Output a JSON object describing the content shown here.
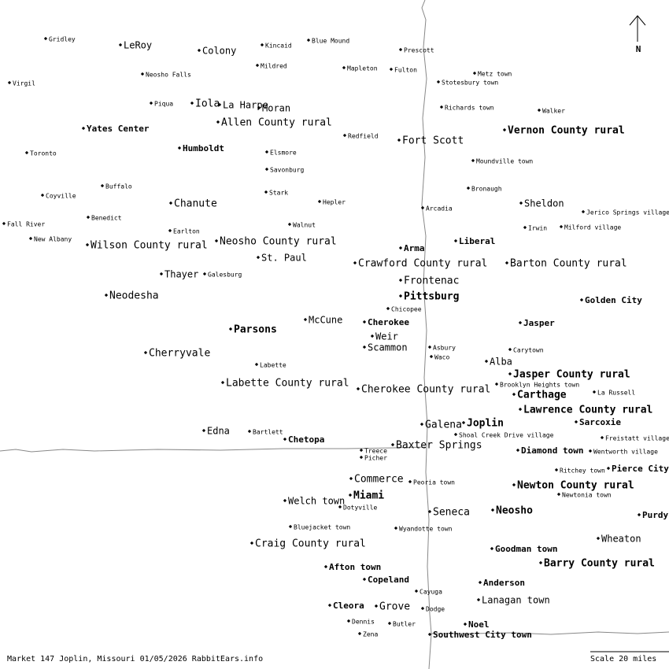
{
  "compass": "N",
  "places": [
    {
      "label": "Gridley"
    },
    {
      "label": "LeRoy"
    },
    {
      "label": "Colony"
    },
    {
      "label": "Kincaid"
    },
    {
      "label": "Blue Mound"
    },
    {
      "label": "Prescott"
    },
    {
      "label": "Mildred"
    },
    {
      "label": "Neosho Falls"
    },
    {
      "label": "Mapleton"
    },
    {
      "label": "Fulton"
    },
    {
      "label": "Metz town"
    },
    {
      "label": "Virgil"
    },
    {
      "label": "Stotesbury town"
    },
    {
      "label": "Piqua"
    },
    {
      "label": "Iola"
    },
    {
      "label": "La Harpe"
    },
    {
      "label": "Moran"
    },
    {
      "label": "Richards town"
    },
    {
      "label": "Walker"
    },
    {
      "label": "Allen County rural"
    },
    {
      "label": "Yates Center"
    },
    {
      "label": "Vernon County rural"
    },
    {
      "label": "Redfield"
    },
    {
      "label": "Fort Scott"
    },
    {
      "label": "Humboldt"
    },
    {
      "label": "Toronto"
    },
    {
      "label": "Elsmore"
    },
    {
      "label": "Moundville town"
    },
    {
      "label": "Savonburg"
    },
    {
      "label": "Buffalo"
    },
    {
      "label": "Bronaugh"
    },
    {
      "label": "Coyville"
    },
    {
      "label": "Stark"
    },
    {
      "label": "Hepler"
    },
    {
      "label": "Chanute"
    },
    {
      "label": "Sheldon"
    },
    {
      "label": "Arcadia"
    },
    {
      "label": "Jerico Springs village"
    },
    {
      "label": "Benedict"
    },
    {
      "label": "Fall River"
    },
    {
      "label": "Walnut"
    },
    {
      "label": "Irwin"
    },
    {
      "label": "Milford village"
    },
    {
      "label": "Earlton"
    },
    {
      "label": "New Albany"
    },
    {
      "label": "Liberal"
    },
    {
      "label": "Neosho County rural"
    },
    {
      "label": "Wilson County rural"
    },
    {
      "label": "Arma"
    },
    {
      "label": "St. Paul"
    },
    {
      "label": "Crawford County rural"
    },
    {
      "label": "Barton County rural"
    },
    {
      "label": "Thayer"
    },
    {
      "label": "Galesburg"
    },
    {
      "label": "Frontenac"
    },
    {
      "label": "Neodesha"
    },
    {
      "label": "Pittsburg"
    },
    {
      "label": "Golden City"
    },
    {
      "label": "Chicopee"
    },
    {
      "label": "McCune"
    },
    {
      "label": "Cherokee"
    },
    {
      "label": "Jasper"
    },
    {
      "label": "Parsons"
    },
    {
      "label": "Weir"
    },
    {
      "label": "Asbury"
    },
    {
      "label": "Scammon"
    },
    {
      "label": "Carytown"
    },
    {
      "label": "Cherryvale"
    },
    {
      "label": "Waco"
    },
    {
      "label": "Alba"
    },
    {
      "label": "Labette"
    },
    {
      "label": "Jasper County rural"
    },
    {
      "label": "Labette County rural"
    },
    {
      "label": "Brooklyn Heights town"
    },
    {
      "label": "Cherokee County rural"
    },
    {
      "label": "La Russell"
    },
    {
      "label": "Carthage"
    },
    {
      "label": "Lawrence County rural"
    },
    {
      "label": "Sarcoxie"
    },
    {
      "label": "Galena"
    },
    {
      "label": "Joplin"
    },
    {
      "label": "Edna"
    },
    {
      "label": "Bartlett"
    },
    {
      "label": "Shoal Creek Drive village"
    },
    {
      "label": "Freistatt village"
    },
    {
      "label": "Chetopa"
    },
    {
      "label": "Baxter Springs"
    },
    {
      "label": "Treece"
    },
    {
      "label": "Diamond town"
    },
    {
      "label": "Wentworth village"
    },
    {
      "label": "Picher"
    },
    {
      "label": "Pierce City"
    },
    {
      "label": "Ritchey town"
    },
    {
      "label": "Commerce"
    },
    {
      "label": "Peoria town"
    },
    {
      "label": "Newton County rural"
    },
    {
      "label": "Newtonia town"
    },
    {
      "label": "Miami"
    },
    {
      "label": "Welch town"
    },
    {
      "label": "Dotyville"
    },
    {
      "label": "Neosho"
    },
    {
      "label": "Seneca"
    },
    {
      "label": "Purdy"
    },
    {
      "label": "Bluejacket town"
    },
    {
      "label": "Wyandotte town"
    },
    {
      "label": "Wheaton"
    },
    {
      "label": "Craig County rural"
    },
    {
      "label": "Goodman town"
    },
    {
      "label": "Barry County rural"
    },
    {
      "label": "Afton town"
    },
    {
      "label": "Copeland"
    },
    {
      "label": "Anderson"
    },
    {
      "label": "Cayuga"
    },
    {
      "label": "Lanagan town"
    },
    {
      "label": "Cleora"
    },
    {
      "label": "Grove"
    },
    {
      "label": "Dodge"
    },
    {
      "label": "Dennis"
    },
    {
      "label": "Butler"
    },
    {
      "label": "Noel"
    },
    {
      "label": "Zena"
    },
    {
      "label": "Southwest City town"
    }
  ],
  "footer": {
    "caption": "Market 147 Joplin, Missouri 01/05/2026 RabbitEars.info",
    "scale": "Scale 20 miles"
  }
}
